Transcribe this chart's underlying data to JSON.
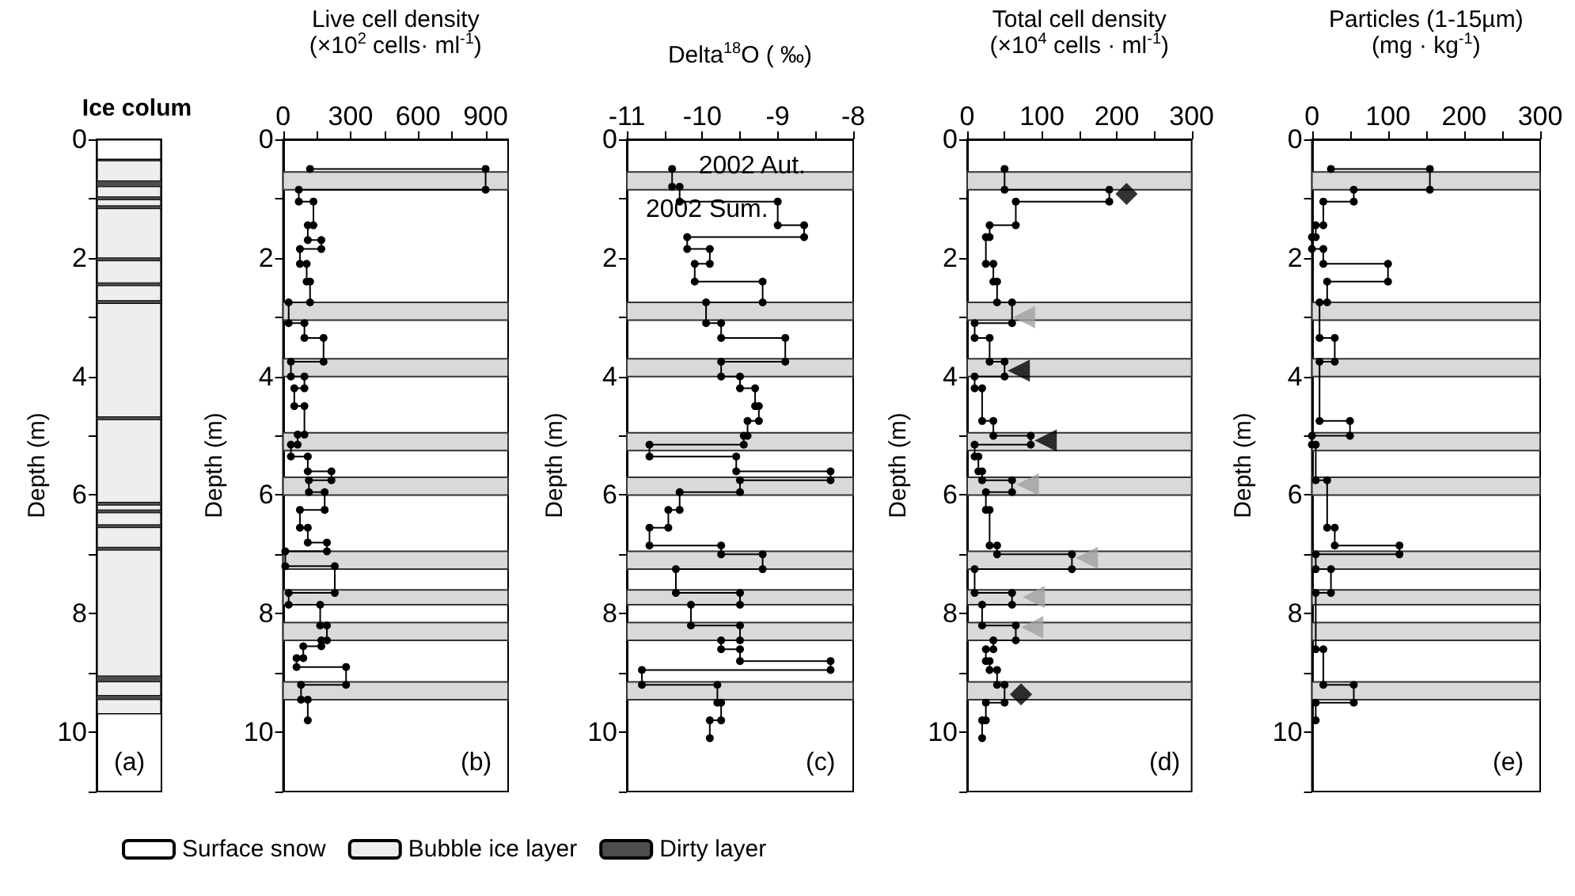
{
  "chart_data": [
    {
      "type": "bar",
      "title": "Ice colum",
      "ylabel": "Depth (m)",
      "categories": [
        null
      ],
      "stacked": true,
      "ylim": [
        11,
        0
      ],
      "yticks": [
        0,
        {
          "value": 1,
          "label": null
        },
        2,
        {
          "value": 3,
          "label": null
        },
        4,
        {
          "value": 5,
          "label": null
        },
        6,
        {
          "value": 7,
          "label": null
        },
        8,
        {
          "value": 9,
          "label": null
        },
        10,
        {
          "value": 11,
          "label": null
        }
      ],
      "tick_labels": "y",
      "grid": false,
      "legend": "bottom",
      "annotations": [
        "(a)"
      ],
      "series": [
        {
          "name": "Surface snow",
          "color": "#ffffff",
          "values": [
            0.35
          ]
        },
        {
          "name": "Bubble ice layer",
          "color": "#eeeeee",
          "values": [
            9.35
          ]
        }
      ],
      "bands": [
        {
          "axis": "y",
          "from": 0.7,
          "to": 0.8,
          "color": "#4d4d4d",
          "label": "Dirty layer"
        },
        {
          "axis": "y",
          "from": 0.97,
          "to": 1.02,
          "color": "#4d4d4d"
        },
        {
          "axis": "y",
          "from": 1.12,
          "to": 1.17,
          "color": "#4d4d4d"
        },
        {
          "axis": "y",
          "from": 2.0,
          "to": 2.05,
          "color": "#4d4d4d"
        },
        {
          "axis": "y",
          "from": 2.42,
          "to": 2.47,
          "color": "#4d4d4d"
        },
        {
          "axis": "y",
          "from": 2.72,
          "to": 2.77,
          "color": "#4d4d4d"
        },
        {
          "axis": "y",
          "from": 4.68,
          "to": 4.73,
          "color": "#4d4d4d"
        },
        {
          "axis": "y",
          "from": 6.12,
          "to": 6.17,
          "color": "#4d4d4d"
        },
        {
          "axis": "y",
          "from": 6.25,
          "to": 6.3,
          "color": "#4d4d4d"
        },
        {
          "axis": "y",
          "from": 6.5,
          "to": 6.55,
          "color": "#4d4d4d"
        },
        {
          "axis": "y",
          "from": 6.88,
          "to": 6.93,
          "color": "#4d4d4d"
        },
        {
          "axis": "y",
          "from": 9.05,
          "to": 9.15,
          "color": "#4d4d4d"
        },
        {
          "axis": "y",
          "from": 9.38,
          "to": 9.45,
          "color": "#4d4d4d"
        }
      ]
    },
    {
      "type": "line",
      "xlabel": "Live cell density\n(×10$^{2}$ cells· ml$^{-1}$)",
      "ylabel": "Depth (m)",
      "xlim": [
        0,
        1000
      ],
      "xticks": [
        0,
        {
          "value": 150,
          "label": null
        },
        300,
        {
          "value": 450,
          "label": null
        },
        600,
        {
          "value": 750,
          "label": null
        },
        900
      ],
      "ylim": [
        11,
        0
      ],
      "yticks": [
        0,
        {
          "value": 1,
          "label": null
        },
        2,
        {
          "value": 3,
          "label": null
        },
        4,
        {
          "value": 5,
          "label": null
        },
        6,
        {
          "value": 7,
          "label": null
        },
        8,
        {
          "value": 9,
          "label": null
        },
        10,
        {
          "value": 11,
          "label": null
        }
      ],
      "grid": false,
      "marker": "circle",
      "annotations": [
        "(b)"
      ],
      "bands": [
        {
          "axis": "y",
          "from": 0.55,
          "to": 0.85,
          "color": "#d9d9d9"
        },
        {
          "axis": "y",
          "from": 2.75,
          "to": 3.05,
          "color": "#d9d9d9"
        },
        {
          "axis": "y",
          "from": 3.7,
          "to": 4.0,
          "color": "#d9d9d9"
        },
        {
          "axis": "y",
          "from": 4.95,
          "to": 5.25,
          "color": "#d9d9d9"
        },
        {
          "axis": "y",
          "from": 5.7,
          "to": 6.0,
          "color": "#d9d9d9"
        },
        {
          "axis": "y",
          "from": 6.95,
          "to": 7.25,
          "color": "#d9d9d9"
        },
        {
          "axis": "y",
          "from": 7.6,
          "to": 7.85,
          "color": "#d9d9d9"
        },
        {
          "axis": "y",
          "from": 8.15,
          "to": 8.45,
          "color": "#d9d9d9"
        },
        {
          "axis": "y",
          "from": 9.15,
          "to": 9.45,
          "color": "#d9d9d9"
        }
      ],
      "series": [
        {
          "color": "#000000",
          "x": [
            120,
            900,
            900,
            70,
            70,
            135,
            135,
            110,
            110,
            170,
            170,
            75,
            75,
            105,
            105,
            120,
            120,
            25,
            25,
            95,
            95,
            180,
            180,
            35,
            35,
            95,
            95,
            50,
            50,
            95,
            95,
            65,
            65,
            35,
            35,
            110,
            110,
            215,
            215,
            115,
            115,
            185,
            185,
            75,
            75,
            110,
            110,
            195,
            195,
            10,
            10,
            230,
            230,
            25,
            25,
            165,
            165,
            195,
            195,
            170,
            170,
            90,
            90,
            60,
            60,
            280,
            280,
            80,
            80,
            110,
            110
          ],
          "values": [
            0.5,
            0.5,
            0.85,
            0.85,
            1.05,
            1.05,
            1.45,
            1.45,
            1.7,
            1.7,
            1.85,
            1.85,
            2.1,
            2.1,
            2.4,
            2.4,
            2.75,
            2.75,
            3.1,
            3.1,
            3.35,
            3.35,
            3.75,
            3.75,
            4.0,
            4.0,
            4.2,
            4.2,
            4.5,
            4.5,
            4.98,
            4.98,
            5.15,
            5.15,
            5.35,
            5.35,
            5.6,
            5.6,
            5.75,
            5.75,
            5.95,
            5.95,
            6.25,
            6.25,
            6.55,
            6.55,
            6.8,
            6.8,
            6.95,
            6.95,
            7.2,
            7.2,
            7.65,
            7.65,
            7.85,
            7.85,
            8.2,
            8.2,
            8.45,
            8.45,
            8.55,
            8.55,
            8.75,
            8.75,
            8.9,
            8.9,
            9.2,
            9.2,
            9.45,
            9.45,
            9.8
          ]
        }
      ]
    },
    {
      "type": "line",
      "xlabel": "Delta$^{18}$O ( ‰)",
      "ylabel": "Depth (m)",
      "xlim": [
        -11,
        -8
      ],
      "xticks": [
        -11,
        {
          "value": -10.5,
          "label": null
        },
        -10,
        {
          "value": -9.5,
          "label": null
        },
        -9,
        {
          "value": -8.5,
          "label": null
        },
        -8
      ],
      "ylim": [
        11,
        0
      ],
      "yticks": [
        0,
        {
          "value": 1,
          "label": null
        },
        2,
        {
          "value": 3,
          "label": null
        },
        4,
        {
          "value": 5,
          "label": null
        },
        6,
        {
          "value": 7,
          "label": null
        },
        8,
        {
          "value": 9,
          "label": null
        },
        10,
        {
          "value": 11,
          "label": null
        }
      ],
      "grid": false,
      "marker": "circle",
      "annotations": [
        "(c)",
        {
          "text": "2002 Aut.",
          "x": -10.3,
          "y": 0.8
        },
        {
          "text": "2002 Sum.",
          "x": -9.0,
          "y": 1.45
        }
      ],
      "bands": [
        {
          "axis": "y",
          "from": 0.55,
          "to": 0.85,
          "color": "#d9d9d9"
        },
        {
          "axis": "y",
          "from": 2.75,
          "to": 3.05,
          "color": "#d9d9d9"
        },
        {
          "axis": "y",
          "from": 3.7,
          "to": 4.0,
          "color": "#d9d9d9"
        },
        {
          "axis": "y",
          "from": 4.95,
          "to": 5.25,
          "color": "#d9d9d9"
        },
        {
          "axis": "y",
          "from": 5.7,
          "to": 6.0,
          "color": "#d9d9d9"
        },
        {
          "axis": "y",
          "from": 6.95,
          "to": 7.25,
          "color": "#d9d9d9"
        },
        {
          "axis": "y",
          "from": 7.6,
          "to": 7.85,
          "color": "#d9d9d9"
        },
        {
          "axis": "y",
          "from": 8.15,
          "to": 8.45,
          "color": "#d9d9d9"
        },
        {
          "axis": "y",
          "from": 9.15,
          "to": 9.45,
          "color": "#d9d9d9"
        }
      ],
      "series": [
        {
          "color": "#000000",
          "x": [
            -10.4,
            -10.4,
            -10.3,
            -10.3,
            -9.0,
            -9.0,
            -8.65,
            -8.65,
            -10.2,
            -10.2,
            -9.9,
            -9.9,
            -10.1,
            -10.1,
            -9.2,
            -9.2,
            -9.95,
            -9.95,
            -9.75,
            -9.75,
            -8.9,
            -8.9,
            -9.75,
            -9.75,
            -9.5,
            -9.5,
            -9.3,
            -9.3,
            -9.25,
            -9.25,
            -9.4,
            -9.4,
            -9.45,
            -9.45,
            -10.7,
            -10.7,
            -9.55,
            -9.55,
            -8.3,
            -8.3,
            -9.5,
            -9.5,
            -10.3,
            -10.3,
            -10.45,
            -10.45,
            -10.7,
            -10.7,
            -9.75,
            -9.75,
            -9.2,
            -9.2,
            -10.35,
            -10.35,
            -9.5,
            -9.5,
            -10.15,
            -10.15,
            -9.5,
            -9.5,
            -9.75,
            -9.75,
            -9.5,
            -9.5,
            -8.3,
            -8.3,
            -10.8,
            -10.8,
            -9.8,
            -9.8,
            -9.75,
            -9.75,
            -9.9,
            -9.9
          ],
          "values": [
            0.5,
            0.8,
            0.8,
            1.05,
            1.05,
            1.45,
            1.45,
            1.65,
            1.65,
            1.85,
            1.85,
            2.1,
            2.1,
            2.4,
            2.4,
            2.75,
            2.75,
            3.1,
            3.1,
            3.35,
            3.35,
            3.75,
            3.75,
            4.0,
            4.0,
            4.2,
            4.2,
            4.5,
            4.5,
            4.75,
            4.75,
            5.0,
            5.0,
            5.15,
            5.15,
            5.35,
            5.35,
            5.6,
            5.6,
            5.75,
            5.75,
            5.95,
            5.95,
            6.25,
            6.25,
            6.55,
            6.55,
            6.85,
            6.85,
            7.0,
            7.0,
            7.25,
            7.25,
            7.65,
            7.65,
            7.85,
            7.85,
            8.2,
            8.2,
            8.45,
            8.45,
            8.6,
            8.6,
            8.8,
            8.8,
            8.95,
            8.95,
            9.2,
            9.2,
            9.5,
            9.5,
            9.8,
            9.8,
            10.1
          ]
        }
      ]
    },
    {
      "type": "line",
      "xlabel": "Total cell density\n(×10$^{4}$ cells · ml$^{-1}$)",
      "ylabel": "Depth (m)",
      "xlim": [
        0,
        300
      ],
      "xticks": [
        0,
        {
          "value": 50,
          "label": null
        },
        100,
        {
          "value": 150,
          "label": null
        },
        200,
        {
          "value": 250,
          "label": null
        },
        300
      ],
      "ylim": [
        11,
        0
      ],
      "yticks": [
        0,
        {
          "value": 1,
          "label": null
        },
        2,
        {
          "value": 3,
          "label": null
        },
        4,
        {
          "value": 5,
          "label": null
        },
        6,
        {
          "value": 7,
          "label": null
        },
        8,
        {
          "value": 9,
          "label": null
        },
        10,
        {
          "value": 11,
          "label": null
        }
      ],
      "grid": false,
      "marker": "circle",
      "annotations": [
        "(d)"
      ],
      "bands": [
        {
          "axis": "y",
          "from": 0.55,
          "to": 0.85,
          "color": "#d9d9d9"
        },
        {
          "axis": "y",
          "from": 2.75,
          "to": 3.05,
          "color": "#d9d9d9"
        },
        {
          "axis": "y",
          "from": 3.7,
          "to": 4.0,
          "color": "#d9d9d9"
        },
        {
          "axis": "y",
          "from": 4.95,
          "to": 5.25,
          "color": "#d9d9d9"
        },
        {
          "axis": "y",
          "from": 5.7,
          "to": 6.0,
          "color": "#d9d9d9"
        },
        {
          "axis": "y",
          "from": 6.95,
          "to": 7.25,
          "color": "#d9d9d9"
        },
        {
          "axis": "y",
          "from": 7.6,
          "to": 7.85,
          "color": "#d9d9d9"
        },
        {
          "axis": "y",
          "from": 8.15,
          "to": 8.45,
          "color": "#d9d9d9"
        },
        {
          "axis": "y",
          "from": 9.15,
          "to": 9.45,
          "color": "#d9d9d9"
        }
      ],
      "series": [
        {
          "color": "#000000",
          "x": [
            50,
            50,
            190,
            190,
            65,
            65,
            30,
            30,
            25,
            25,
            35,
            35,
            40,
            40,
            60,
            60,
            10,
            10,
            30,
            30,
            50,
            50,
            10,
            10,
            20,
            20,
            35,
            35,
            85,
            85,
            10,
            10,
            15,
            15,
            20,
            20,
            60,
            60,
            25,
            25,
            30,
            30,
            40,
            40,
            140,
            140,
            10,
            10,
            60,
            60,
            20,
            20,
            65,
            65,
            35,
            35,
            25,
            25,
            30,
            30,
            40,
            40,
            50,
            50,
            25,
            25,
            20,
            20
          ],
          "values": [
            0.5,
            0.85,
            0.85,
            1.05,
            1.05,
            1.45,
            1.45,
            1.65,
            1.65,
            2.1,
            2.1,
            2.4,
            2.4,
            2.75,
            2.75,
            3.1,
            3.1,
            3.35,
            3.35,
            3.75,
            3.75,
            4.0,
            4.0,
            4.2,
            4.2,
            4.75,
            4.75,
            5.0,
            5.0,
            5.15,
            5.15,
            5.35,
            5.35,
            5.6,
            5.6,
            5.75,
            5.75,
            5.95,
            5.95,
            6.25,
            6.25,
            6.85,
            6.85,
            7.0,
            7.0,
            7.25,
            7.25,
            7.65,
            7.65,
            7.85,
            7.85,
            8.2,
            8.2,
            8.45,
            8.45,
            8.6,
            8.6,
            8.8,
            8.8,
            8.95,
            8.95,
            9.2,
            9.2,
            9.5,
            9.5,
            9.8,
            9.8,
            10.1
          ]
        },
        {
          "type": "scatter",
          "marker": "diamond",
          "color": "#000000",
          "x": [
            213,
            72
          ],
          "values": [
            0.92,
            9.36
          ]
        },
        {
          "type": "scatter",
          "marker": "triangle",
          "color": "#000000",
          "x": [
            69,
            105
          ],
          "values": [
            3.9,
            5.08
          ]
        },
        {
          "type": "scatter",
          "marker": "triangle",
          "color": "#a0a0a0",
          "x": [
            76,
            81,
            160,
            89,
            87
          ],
          "values": [
            3.0,
            5.82,
            7.06,
            7.72,
            8.23
          ]
        }
      ]
    },
    {
      "type": "line",
      "xlabel": "Particles (1-15µm)\n(mg · kg$^{-1}$)",
      "ylabel": "Depth (m)",
      "xlim": [
        0,
        300
      ],
      "xticks": [
        0,
        {
          "value": 50,
          "label": null
        },
        100,
        {
          "value": 150,
          "label": null
        },
        200,
        {
          "value": 250,
          "label": null
        },
        300
      ],
      "ylim": [
        11,
        0
      ],
      "yticks": [
        0,
        {
          "value": 1,
          "label": null
        },
        2,
        {
          "value": 3,
          "label": null
        },
        4,
        {
          "value": 5,
          "label": null
        },
        6,
        {
          "value": 7,
          "label": null
        },
        8,
        {
          "value": 9,
          "label": null
        },
        10,
        {
          "value": 11,
          "label": null
        }
      ],
      "grid": false,
      "marker": "circle",
      "annotations": [
        "(e)"
      ],
      "bands": [
        {
          "axis": "y",
          "from": 0.55,
          "to": 0.85,
          "color": "#d9d9d9"
        },
        {
          "axis": "y",
          "from": 2.75,
          "to": 3.05,
          "color": "#d9d9d9"
        },
        {
          "axis": "y",
          "from": 3.7,
          "to": 4.0,
          "color": "#d9d9d9"
        },
        {
          "axis": "y",
          "from": 4.95,
          "to": 5.25,
          "color": "#d9d9d9"
        },
        {
          "axis": "y",
          "from": 5.7,
          "to": 6.0,
          "color": "#d9d9d9"
        },
        {
          "axis": "y",
          "from": 6.95,
          "to": 7.25,
          "color": "#d9d9d9"
        },
        {
          "axis": "y",
          "from": 7.6,
          "to": 7.85,
          "color": "#d9d9d9"
        },
        {
          "axis": "y",
          "from": 8.15,
          "to": 8.45,
          "color": "#d9d9d9"
        },
        {
          "axis": "y",
          "from": 9.15,
          "to": 9.45,
          "color": "#d9d9d9"
        }
      ],
      "series": [
        {
          "color": "#000000",
          "x": [
            25,
            155,
            155,
            55,
            55,
            15,
            15,
            5,
            5,
            0,
            0,
            15,
            15,
            100,
            100,
            20,
            20,
            10,
            10,
            30,
            30,
            10,
            10,
            50,
            50,
            0,
            0,
            5,
            5,
            20,
            20,
            30,
            30,
            115,
            115,
            5,
            5,
            25,
            25,
            5,
            5,
            15,
            15,
            55,
            55,
            5,
            5
          ],
          "values": [
            0.5,
            0.5,
            0.85,
            0.85,
            1.05,
            1.05,
            1.45,
            1.45,
            1.65,
            1.65,
            1.85,
            1.85,
            2.1,
            2.1,
            2.4,
            2.4,
            2.75,
            2.75,
            3.35,
            3.35,
            3.75,
            3.75,
            4.75,
            4.75,
            5.0,
            5.0,
            5.15,
            5.15,
            5.75,
            5.75,
            6.55,
            6.55,
            6.85,
            6.85,
            7.0,
            7.0,
            7.25,
            7.25,
            7.65,
            7.65,
            8.6,
            8.6,
            9.2,
            9.2,
            9.5,
            9.5,
            9.8
          ]
        }
      ]
    }
  ]
}
